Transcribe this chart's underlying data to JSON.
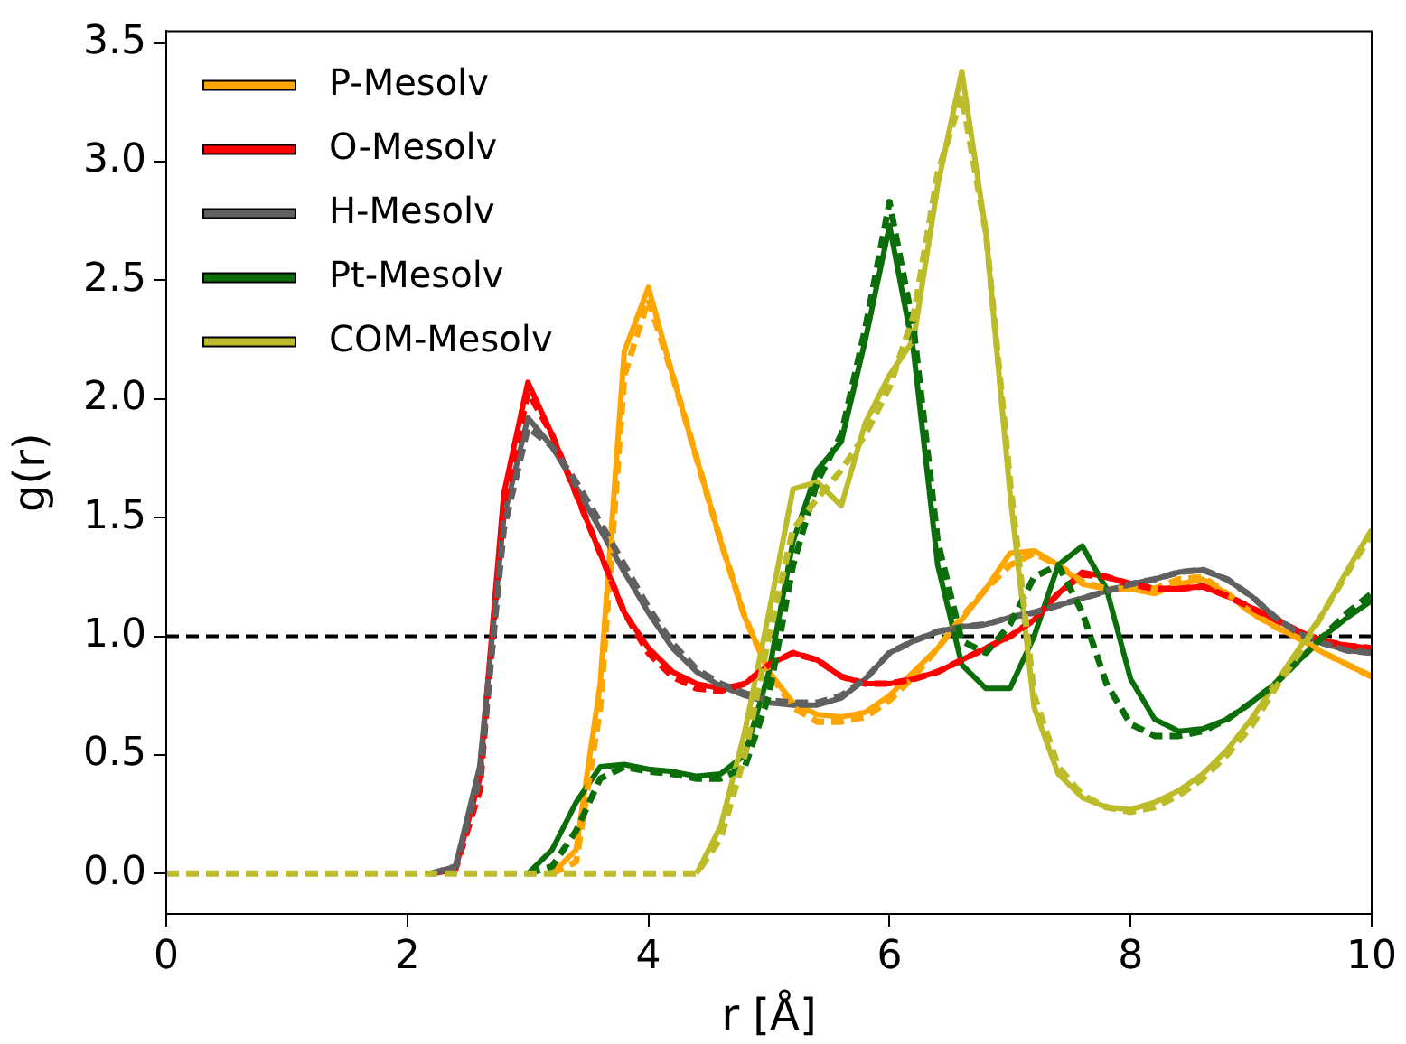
{
  "chart_data": {
    "type": "line",
    "xlabel": "r [Å]",
    "ylabel": "g(r)",
    "x": [
      0,
      0.2,
      0.4,
      0.6,
      0.8,
      1.0,
      1.2,
      1.4,
      1.6,
      1.8,
      2.0,
      2.2,
      2.4,
      2.6,
      2.8,
      3.0,
      3.2,
      3.4,
      3.6,
      3.8,
      4.0,
      4.2,
      4.4,
      4.6,
      4.8,
      5.0,
      5.2,
      5.4,
      5.6,
      5.8,
      6.0,
      6.2,
      6.4,
      6.6,
      6.8,
      7.0,
      7.2,
      7.4,
      7.6,
      7.8,
      8.0,
      8.2,
      8.4,
      8.6,
      8.8,
      9.0,
      9.2,
      9.4,
      9.6,
      9.8,
      10.0
    ],
    "series": [
      {
        "name": "P-Mesolv",
        "color": "#ffa500",
        "line_style": "solid",
        "values": [
          null,
          null,
          null,
          null,
          null,
          null,
          null,
          null,
          null,
          null,
          null,
          null,
          null,
          null,
          null,
          null,
          0,
          0.1,
          0.8,
          2.2,
          2.47,
          2.1,
          1.75,
          1.4,
          1.08,
          0.85,
          0.72,
          0.67,
          0.66,
          0.68,
          0.75,
          0.85,
          0.95,
          1.07,
          1.2,
          1.35,
          1.36,
          1.3,
          1.22,
          1.2,
          1.2,
          1.18,
          1.22,
          1.24,
          1.18,
          1.1,
          1.04,
          0.99,
          0.93,
          0.88,
          0.83
        ]
      },
      {
        "name": "O-Mesolv",
        "color": "#ff0000",
        "line_style": "solid",
        "values": [
          null,
          null,
          null,
          null,
          null,
          null,
          null,
          null,
          null,
          null,
          null,
          0,
          0.02,
          0.4,
          1.6,
          2.07,
          1.85,
          1.6,
          1.35,
          1.1,
          0.95,
          0.85,
          0.8,
          0.78,
          0.8,
          0.88,
          0.93,
          0.9,
          0.83,
          0.8,
          0.8,
          0.82,
          0.85,
          0.9,
          0.95,
          1.0,
          1.07,
          1.18,
          1.27,
          1.25,
          1.22,
          1.2,
          1.2,
          1.21,
          1.17,
          1.12,
          1.07,
          1.02,
          0.98,
          0.96,
          0.95
        ]
      },
      {
        "name": "H-Mesolv",
        "color": "#606060",
        "line_style": "solid",
        "values": [
          null,
          null,
          null,
          null,
          null,
          null,
          null,
          null,
          null,
          null,
          null,
          0,
          0.03,
          0.45,
          1.5,
          1.92,
          1.8,
          1.63,
          1.45,
          1.27,
          1.1,
          0.95,
          0.85,
          0.79,
          0.75,
          0.72,
          0.71,
          0.71,
          0.74,
          0.82,
          0.93,
          0.98,
          1.02,
          1.04,
          1.05,
          1.08,
          1.1,
          1.13,
          1.16,
          1.19,
          1.22,
          1.24,
          1.27,
          1.28,
          1.24,
          1.17,
          1.08,
          1.01,
          0.97,
          0.94,
          0.93
        ]
      },
      {
        "name": "Pt-Mesolv",
        "color": "#0b6e0b",
        "line_style": "solid",
        "values": [
          null,
          null,
          null,
          null,
          null,
          null,
          null,
          null,
          null,
          null,
          null,
          null,
          null,
          null,
          null,
          0,
          0.1,
          0.3,
          0.45,
          0.46,
          0.44,
          0.43,
          0.41,
          0.42,
          0.5,
          0.85,
          1.4,
          1.7,
          1.82,
          2.25,
          2.73,
          2.2,
          1.3,
          0.88,
          0.78,
          0.78,
          1.0,
          1.3,
          1.38,
          1.2,
          0.82,
          0.65,
          0.6,
          0.61,
          0.65,
          0.72,
          0.8,
          0.9,
          1.0,
          1.08,
          1.15
        ]
      },
      {
        "name": "COM-Mesolv",
        "color": "#bcbc2a",
        "line_style": "solid",
        "values": [
          null,
          null,
          null,
          null,
          null,
          null,
          null,
          null,
          null,
          null,
          null,
          null,
          null,
          null,
          null,
          null,
          null,
          null,
          null,
          null,
          null,
          null,
          0,
          0.2,
          0.6,
          1.1,
          1.62,
          1.65,
          1.55,
          1.9,
          2.1,
          2.25,
          2.9,
          3.38,
          2.7,
          1.6,
          0.7,
          0.42,
          0.32,
          0.28,
          0.27,
          0.3,
          0.35,
          0.42,
          0.52,
          0.65,
          0.8,
          0.95,
          1.1,
          1.28,
          1.45
        ]
      },
      {
        "color": "#ffa500",
        "line_style": "dashed",
        "values": [
          null,
          null,
          null,
          null,
          null,
          null,
          null,
          null,
          null,
          null,
          null,
          null,
          null,
          null,
          null,
          null,
          0,
          0.05,
          0.7,
          2.1,
          2.42,
          2.1,
          1.75,
          1.4,
          1.08,
          0.85,
          0.7,
          0.64,
          0.64,
          0.66,
          0.73,
          0.83,
          0.95,
          1.08,
          1.2,
          1.3,
          1.35,
          1.3,
          1.23,
          1.2,
          1.2,
          1.2,
          1.24,
          1.25,
          1.18,
          1.1,
          1.04,
          0.99,
          0.93,
          0.88,
          0.83
        ]
      },
      {
        "color": "#ff0000",
        "line_style": "dashed",
        "values": [
          null,
          null,
          null,
          null,
          null,
          null,
          null,
          null,
          null,
          null,
          null,
          0,
          0.02,
          0.35,
          1.55,
          2.03,
          1.85,
          1.6,
          1.35,
          1.1,
          0.93,
          0.83,
          0.78,
          0.77,
          0.8,
          0.88,
          0.93,
          0.9,
          0.83,
          0.8,
          0.8,
          0.82,
          0.85,
          0.9,
          0.95,
          1.0,
          1.07,
          1.18,
          1.26,
          1.25,
          1.22,
          1.2,
          1.2,
          1.21,
          1.17,
          1.12,
          1.07,
          1.02,
          0.98,
          0.96,
          0.95
        ]
      },
      {
        "color": "#606060",
        "line_style": "dashed",
        "values": [
          null,
          null,
          null,
          null,
          null,
          null,
          null,
          null,
          null,
          null,
          null,
          0,
          0.03,
          0.4,
          1.45,
          1.88,
          1.8,
          1.65,
          1.48,
          1.3,
          1.12,
          0.97,
          0.86,
          0.8,
          0.76,
          0.73,
          0.72,
          0.72,
          0.75,
          0.82,
          0.93,
          0.98,
          1.02,
          1.04,
          1.05,
          1.08,
          1.1,
          1.13,
          1.16,
          1.19,
          1.22,
          1.24,
          1.27,
          1.28,
          1.24,
          1.17,
          1.08,
          1.01,
          0.97,
          0.94,
          0.93
        ]
      },
      {
        "color": "#0b6e0b",
        "line_style": "dashed",
        "values": [
          null,
          null,
          null,
          null,
          null,
          null,
          null,
          null,
          null,
          null,
          null,
          null,
          null,
          null,
          null,
          0,
          0.03,
          0.18,
          0.4,
          0.45,
          0.43,
          0.42,
          0.4,
          0.4,
          0.45,
          0.75,
          1.3,
          1.65,
          1.85,
          2.3,
          2.83,
          2.3,
          1.4,
          0.98,
          0.93,
          1.05,
          1.25,
          1.3,
          1.1,
          0.8,
          0.63,
          0.58,
          0.58,
          0.6,
          0.65,
          0.72,
          0.8,
          0.9,
          1.0,
          1.1,
          1.18
        ]
      },
      {
        "color": "#bcbc2a",
        "line_style": "dashed",
        "values": [
          0,
          0,
          0,
          0,
          0,
          0,
          0,
          0,
          0,
          0,
          0,
          0,
          0,
          0,
          0,
          0,
          0,
          0,
          0,
          0,
          0,
          0,
          0,
          0.15,
          0.5,
          1.0,
          1.45,
          1.58,
          1.7,
          1.85,
          2.05,
          2.35,
          2.95,
          3.28,
          2.7,
          1.65,
          0.75,
          0.45,
          0.33,
          0.28,
          0.26,
          0.28,
          0.33,
          0.4,
          0.5,
          0.62,
          0.78,
          0.93,
          1.1,
          1.27,
          1.43
        ]
      }
    ],
    "xlim": [
      0,
      10
    ],
    "xticks": [
      0,
      2,
      4,
      6,
      8,
      10
    ],
    "ylim": [
      -0.17,
      3.55
    ],
    "yticks": [
      {
        "value": 0,
        "label": "0.0"
      },
      0.5,
      {
        "value": 1,
        "label": "1.0"
      },
      1.5,
      {
        "value": 2,
        "label": "2.0"
      },
      2.5,
      {
        "value": 3,
        "label": "3.0"
      },
      3.5
    ],
    "ref_lines": [
      {
        "axis": "y",
        "value": 1,
        "color": "#000000",
        "line_style": "dashed"
      }
    ],
    "grid": false,
    "legend": "top left",
    "marker": "none"
  }
}
